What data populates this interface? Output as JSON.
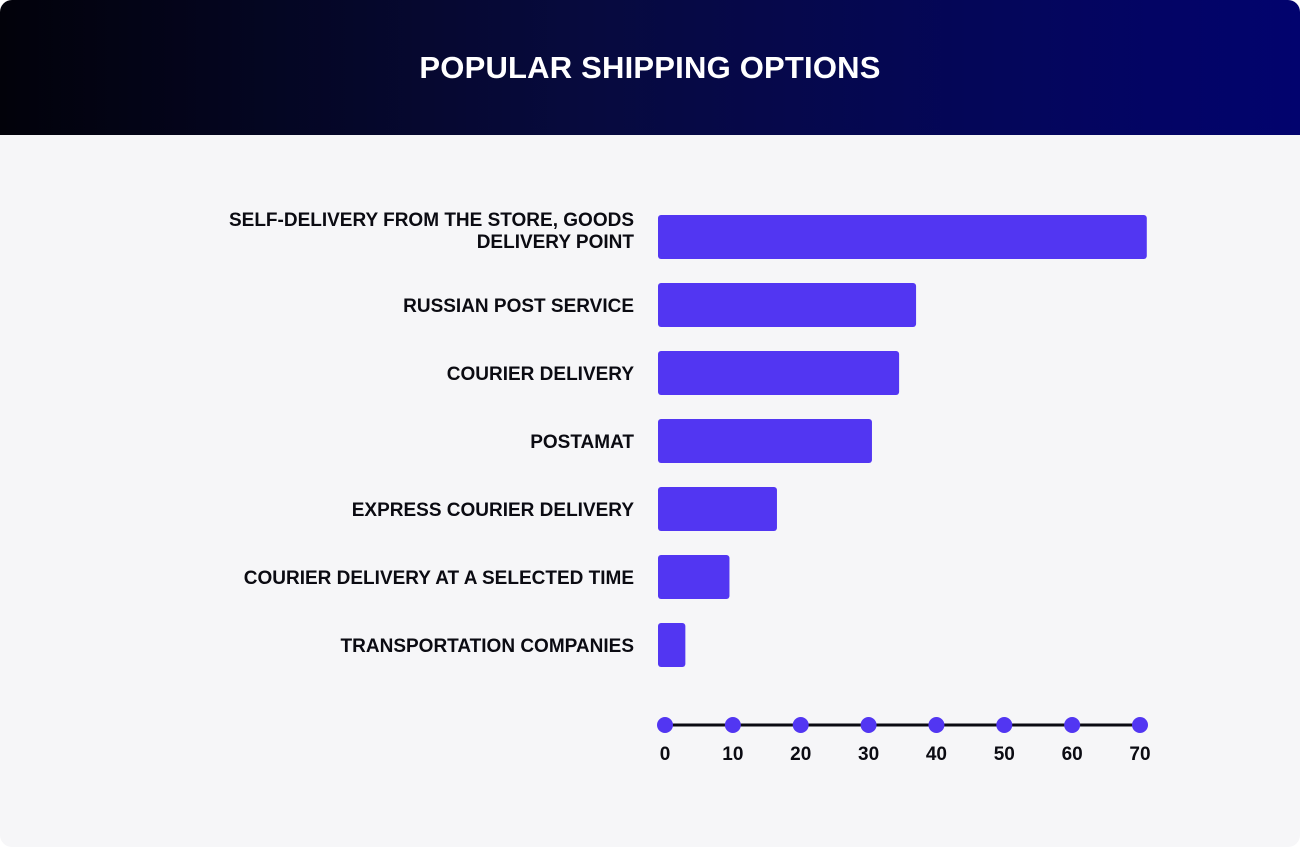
{
  "colors": {
    "bar": "#5236f2",
    "axis_line": "#0b0b12",
    "background": "#f6f6f8",
    "header_start": "#02020a",
    "header_end": "#02036e"
  },
  "chart_data": {
    "type": "bar",
    "orientation": "horizontal",
    "title": "POPULAR SHIPPING OPTIONS",
    "categories": [
      "SELF-DELIVERY FROM THE STORE, GOODS DELIVERY POINT",
      "RUSSIAN POST SERVICE",
      "COURIER DELIVERY",
      "POSTAMAT",
      "EXPRESS COURIER DELIVERY",
      "COURIER DELIVERY AT A SELECTED TIME",
      "TRANSPORTATION COMPANIES"
    ],
    "values": [
      71,
      37,
      34.5,
      30.5,
      16.5,
      9.5,
      3
    ],
    "xticks": [
      0,
      10,
      20,
      30,
      40,
      50,
      60,
      70
    ],
    "xlim": [
      0,
      70
    ],
    "grid": false,
    "legend": "none"
  }
}
